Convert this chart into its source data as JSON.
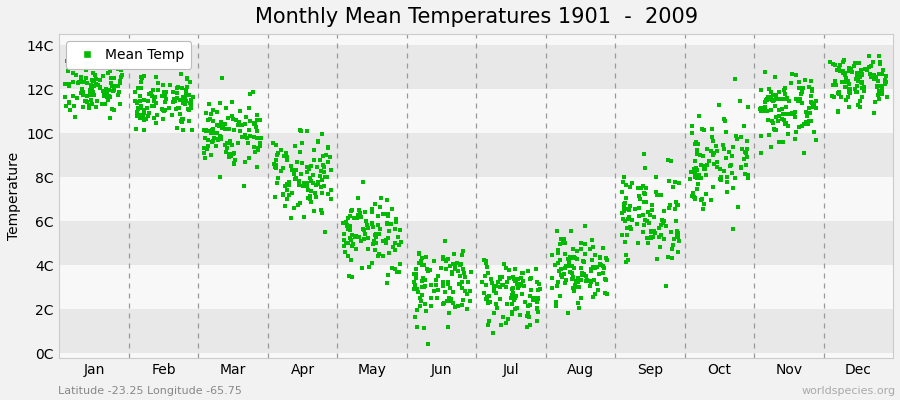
{
  "title": "Monthly Mean Temperatures 1901  -  2009",
  "ylabel": "Temperature",
  "xlabel_labels": [
    "Jan",
    "Feb",
    "Mar",
    "Apr",
    "May",
    "Jun",
    "Jul",
    "Aug",
    "Sep",
    "Oct",
    "Nov",
    "Dec"
  ],
  "ytick_labels": [
    "0C",
    "2C",
    "4C",
    "6C",
    "8C",
    "10C",
    "12C",
    "14C"
  ],
  "ytick_values": [
    0,
    2,
    4,
    6,
    8,
    10,
    12,
    14
  ],
  "ylim": [
    -0.2,
    14.5
  ],
  "xlim": [
    0,
    12
  ],
  "dot_color": "#00bb00",
  "bg_color": "#f2f2f2",
  "plot_bg_color": "#f8f8f8",
  "stripe_light": "#f8f8f8",
  "stripe_dark": "#e8e8e8",
  "vline_color": "#999999",
  "title_fontsize": 15,
  "axis_fontsize": 10,
  "tick_fontsize": 10,
  "legend_label": "Mean Temp",
  "subtitle_left": "Latitude -23.25 Longitude -65.75",
  "subtitle_right": "worldspecies.org",
  "monthly_means": [
    12.0,
    11.5,
    10.0,
    8.2,
    5.3,
    3.2,
    2.8,
    3.8,
    6.2,
    8.8,
    11.0,
    12.3
  ],
  "monthly_std": [
    0.55,
    0.6,
    0.85,
    0.9,
    0.95,
    0.85,
    0.75,
    0.85,
    1.0,
    1.05,
    0.75,
    0.55
  ],
  "n_years": 109,
  "dot_size": 6,
  "dot_marker": "s"
}
